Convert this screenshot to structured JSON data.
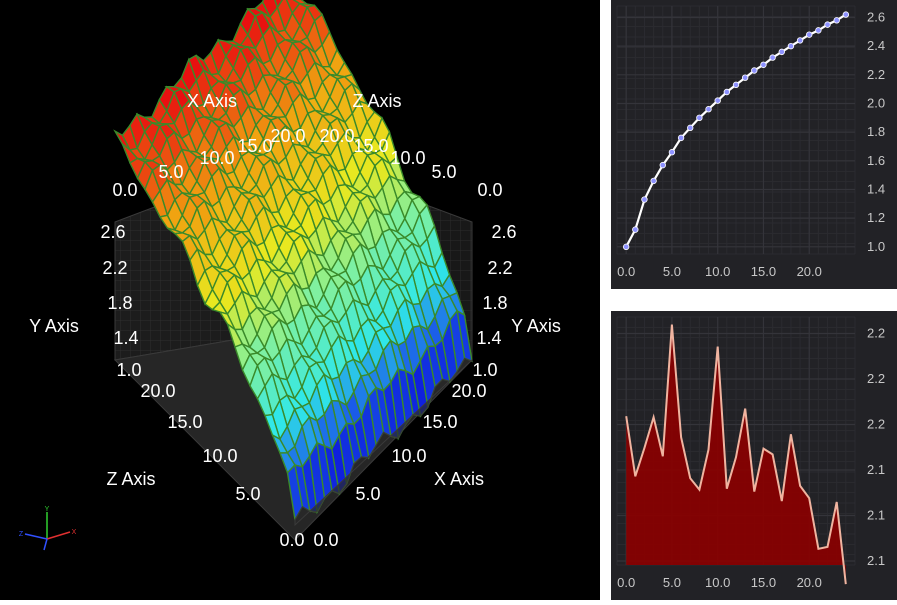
{
  "surface3d": {
    "x_axis_title": "X Axis",
    "y_axis_title": "Y Axis",
    "z_axis_title": "Z Axis",
    "x_ticks": [
      "0.0",
      "5.0",
      "10.0",
      "15.0",
      "20.0"
    ],
    "z_ticks": [
      "0.0",
      "5.0",
      "10.0",
      "15.0",
      "20.0"
    ],
    "y_ticks": [
      "1.0",
      "1.4",
      "1.8",
      "2.2",
      "2.6"
    ],
    "triad_labels": {
      "x": "X",
      "y": "Y",
      "z": "Z"
    },
    "colors": {
      "low": "#1010e0",
      "mid_low": "#30e8e8",
      "mid": "#e8e820",
      "high": "#e81010",
      "mesh": "#3a8a2a"
    }
  },
  "chart_data": [
    {
      "type": "line",
      "x": [
        0,
        1,
        2,
        3,
        4,
        5,
        6,
        7,
        8,
        9,
        10,
        11,
        12,
        13,
        14,
        15,
        16,
        17,
        18,
        19,
        20,
        21,
        22,
        23,
        24
      ],
      "y": [
        1.0,
        1.12,
        1.33,
        1.46,
        1.57,
        1.66,
        1.76,
        1.83,
        1.9,
        1.96,
        2.02,
        2.08,
        2.13,
        2.18,
        2.23,
        2.27,
        2.32,
        2.36,
        2.4,
        2.44,
        2.48,
        2.51,
        2.55,
        2.58,
        2.62
      ],
      "xlim": [
        -1,
        25
      ],
      "ylim": [
        0.95,
        2.68
      ],
      "x_ticks": [
        "0.0",
        "5.0",
        "10.0",
        "15.0",
        "20.0"
      ],
      "y_ticks": [
        "1.0",
        "1.2",
        "1.4",
        "1.6",
        "1.8",
        "2.0",
        "2.2",
        "2.4",
        "2.6"
      ],
      "colors": {
        "line": "#ffffff",
        "marker": "#8e92ff",
        "grid": "#34343a"
      }
    },
    {
      "type": "area",
      "x": [
        0,
        1,
        2,
        3,
        4,
        5,
        6,
        7,
        8,
        9,
        10,
        11,
        12,
        13,
        14,
        15,
        16,
        17,
        18,
        19,
        20,
        21,
        22,
        23,
        24
      ],
      "y": [
        2.126,
        2.063,
        2.093,
        2.125,
        2.084,
        2.222,
        2.104,
        2.061,
        2.049,
        2.091,
        2.199,
        2.05,
        2.083,
        2.134,
        2.047,
        2.092,
        2.086,
        2.037,
        2.107,
        2.053,
        2.04,
        1.987,
        1.989,
        2.036,
        1.95
      ],
      "xlim": [
        -1,
        25
      ],
      "ylim": [
        1.97,
        2.23
      ],
      "x_ticks": [
        "0.0",
        "5.0",
        "10.0",
        "15.0",
        "20.0"
      ],
      "y_ticks": [
        "2.1",
        "2.1",
        "2.1",
        "2.2",
        "2.2",
        "2.2"
      ],
      "colors": {
        "fill": "#8a0000",
        "line": "#f0b4a0",
        "grid": "#34343a"
      }
    }
  ]
}
